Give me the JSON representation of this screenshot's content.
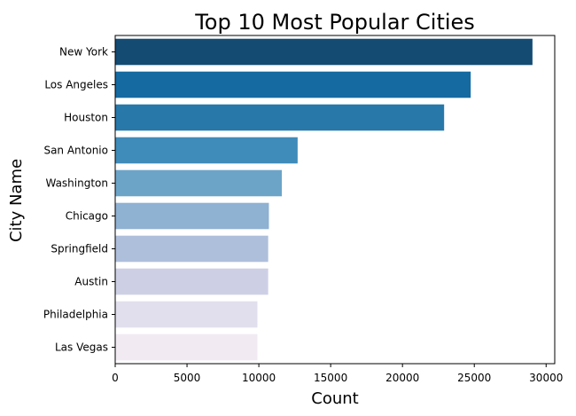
{
  "chart_data": {
    "type": "bar",
    "orientation": "horizontal",
    "title": "Top 10 Most Popular Cities",
    "xlabel": "Count",
    "ylabel": "City Name",
    "xlim": [
      0,
      30600
    ],
    "xticks": [
      0,
      5000,
      10000,
      15000,
      20000,
      25000,
      30000
    ],
    "grid": false,
    "legend": "none",
    "categories": [
      "New York",
      "Los Angeles",
      "Houston",
      "San Antonio",
      "Washington",
      "Chicago",
      "Springfield",
      "Austin",
      "Philadelphia",
      "Las Vegas"
    ],
    "values": [
      29050,
      24750,
      22900,
      12700,
      11600,
      10700,
      10650,
      10650,
      9900,
      9900
    ],
    "colors": [
      "#134b73",
      "#146aa1",
      "#2878aa",
      "#3f8bb9",
      "#6ca4c8",
      "#8fb1d2",
      "#aebfdc",
      "#cdd0e5",
      "#e1dfed",
      "#f1eaf3"
    ]
  }
}
